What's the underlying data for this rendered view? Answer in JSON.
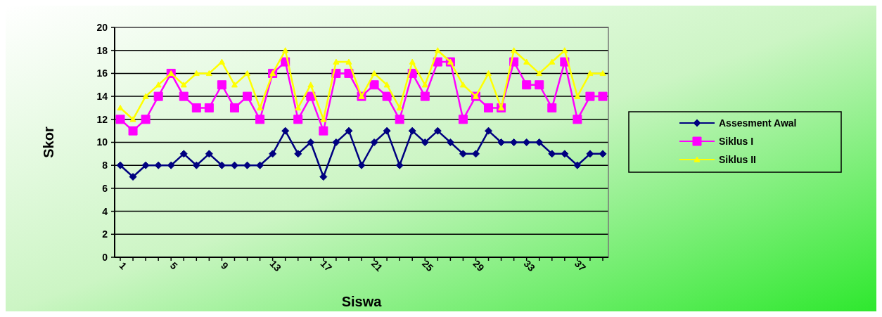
{
  "chart_data": {
    "type": "line",
    "xlabel": "Siswa",
    "ylabel": "Skor",
    "categories": [
      "1",
      null,
      null,
      null,
      "5",
      null,
      null,
      null,
      "9",
      null,
      null,
      null,
      "13",
      null,
      null,
      null,
      "17",
      null,
      null,
      null,
      "21",
      null,
      null,
      null,
      "25",
      null,
      null,
      null,
      "29",
      null,
      null,
      null,
      "33",
      null,
      null,
      null,
      "37",
      null,
      null
    ],
    "series": [
      {
        "name": "Assesment Awal",
        "color": "#000080",
        "marker": "diamond",
        "values": [
          8,
          7,
          8,
          8,
          8,
          9,
          8,
          9,
          8,
          8,
          8,
          8,
          9,
          11,
          9,
          10,
          7,
          10,
          11,
          8,
          10,
          11,
          8,
          11,
          10,
          11,
          10,
          9,
          9,
          11,
          10,
          10,
          10,
          10,
          9,
          9,
          8,
          9,
          9
        ]
      },
      {
        "name": "Siklus I",
        "color": "#ff00ff",
        "marker": "square",
        "values": [
          12,
          11,
          12,
          14,
          16,
          14,
          13,
          13,
          15,
          13,
          14,
          12,
          16,
          17,
          12,
          14,
          11,
          16,
          16,
          14,
          15,
          14,
          12,
          16,
          14,
          17,
          17,
          12,
          14,
          13,
          13,
          17,
          15,
          15,
          13,
          17,
          12,
          14,
          14
        ]
      },
      {
        "name": "Siklus II",
        "color": "#ffff00",
        "marker": "triangle",
        "values": [
          13,
          12,
          14,
          15,
          16,
          15,
          16,
          16,
          17,
          15,
          16,
          13,
          16,
          18,
          13,
          15,
          12,
          17,
          17,
          14,
          16,
          15,
          13,
          17,
          15,
          18,
          17,
          15,
          14,
          16,
          13,
          18,
          17,
          16,
          17,
          18,
          14,
          16,
          16
        ]
      }
    ],
    "ylim": [
      0,
      20
    ],
    "yticks": [
      0,
      2,
      4,
      6,
      8,
      10,
      12,
      14,
      16,
      18,
      20
    ],
    "grid": "y",
    "legend": "right",
    "line_style": "solid"
  }
}
